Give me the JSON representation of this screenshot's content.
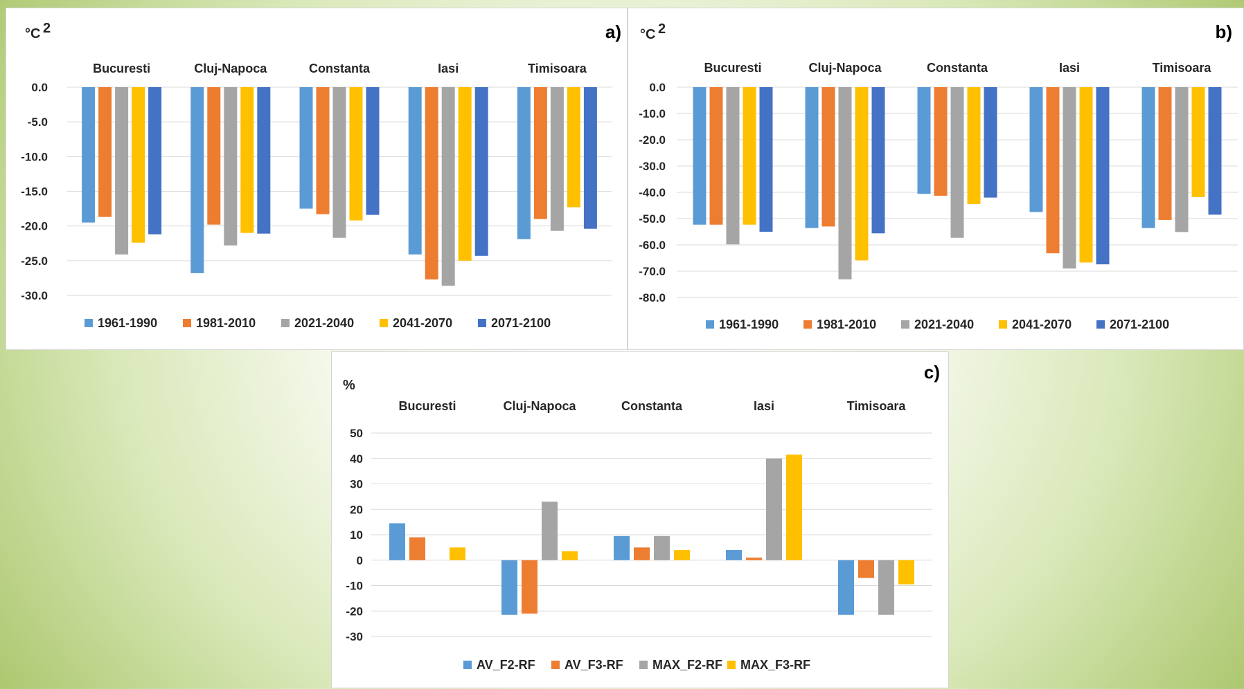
{
  "chart_data": [
    {
      "type": "bar",
      "panel_label": "a)",
      "unit": "°C",
      "unit_sup": "2",
      "categories": [
        "Bucuresti",
        "Cluj-Napoca",
        "Constanta",
        "Iasi",
        "Timisoara"
      ],
      "ylim": [
        -30,
        0
      ],
      "yticks": [
        "0.0",
        "-5.0",
        "-10.0",
        "-15.0",
        "-20.0",
        "-25.0",
        "-30.0"
      ],
      "ytick_values": [
        0,
        -5,
        -10,
        -15,
        -20,
        -25,
        -30
      ],
      "grid": true,
      "legend_position": "bottom",
      "series": [
        {
          "name": "1961-1990",
          "color": "#5b9bd5",
          "values": [
            -19.5,
            -26.8,
            -17.5,
            -24.1,
            -21.9
          ]
        },
        {
          "name": "1981-2010",
          "color": "#ed7d31",
          "values": [
            -18.7,
            -19.8,
            -18.3,
            -27.7,
            -19.0
          ]
        },
        {
          "name": "2021-2040",
          "color": "#a5a5a5",
          "values": [
            -24.1,
            -22.8,
            -21.7,
            -28.6,
            -20.7
          ]
        },
        {
          "name": "2041-2070",
          "color": "#ffc000",
          "values": [
            -22.4,
            -21.0,
            -19.2,
            -25.0,
            -17.3
          ]
        },
        {
          "name": "2071-2100",
          "color": "#4472c4",
          "values": [
            -21.2,
            -21.1,
            -18.4,
            -24.3,
            -20.4
          ]
        }
      ]
    },
    {
      "type": "bar",
      "panel_label": "b)",
      "unit": "°C",
      "unit_sup": "2",
      "categories": [
        "Bucuresti",
        "Cluj-Napoca",
        "Constanta",
        "Iasi",
        "Timisoara"
      ],
      "ylim": [
        -80,
        0
      ],
      "yticks": [
        "0.0",
        "-10.0",
        "-20.0",
        "-30.0",
        "-40.0",
        "-50.0",
        "-60.0",
        "-70.0",
        "-80.0"
      ],
      "ytick_values": [
        0,
        -10,
        -20,
        -30,
        -40,
        -50,
        -60,
        -70,
        -80
      ],
      "grid": true,
      "legend_position": "bottom",
      "series": [
        {
          "name": "1961-1990",
          "color": "#5b9bd5",
          "values": [
            -52.3,
            -53.6,
            -40.6,
            -47.5,
            -53.6
          ]
        },
        {
          "name": "1981-2010",
          "color": "#ed7d31",
          "values": [
            -52.3,
            -53.0,
            -41.3,
            -63.2,
            -50.5
          ]
        },
        {
          "name": "2021-2040",
          "color": "#a5a5a5",
          "values": [
            -59.8,
            -73.1,
            -57.3,
            -69.0,
            -55.1
          ]
        },
        {
          "name": "2041-2070",
          "color": "#ffc000",
          "values": [
            -52.3,
            -65.9,
            -44.5,
            -66.7,
            -41.8
          ]
        },
        {
          "name": "2071-2100",
          "color": "#4472c4",
          "values": [
            -55.0,
            -55.6,
            -42.0,
            -67.4,
            -48.5
          ]
        }
      ]
    },
    {
      "type": "bar",
      "panel_label": "c)",
      "unit": "%",
      "unit_sup": "",
      "categories": [
        "Bucuresti",
        "Cluj-Napoca",
        "Constanta",
        "Iasi",
        "Timisoara"
      ],
      "ylim": [
        -30,
        50
      ],
      "yticks": [
        "50",
        "40",
        "30",
        "20",
        "10",
        "0",
        "-10",
        "-20",
        "-30"
      ],
      "ytick_values": [
        50,
        40,
        30,
        20,
        10,
        0,
        -10,
        -20,
        -30
      ],
      "grid": true,
      "legend_position": "bottom",
      "series": [
        {
          "name": "AV_F2-RF",
          "color": "#5b9bd5",
          "values": [
            14.5,
            -21.5,
            9.5,
            4.0,
            -21.5
          ]
        },
        {
          "name": "AV_F3-RF",
          "color": "#ed7d31",
          "values": [
            9.0,
            -21.0,
            5.0,
            1.0,
            -7.0
          ]
        },
        {
          "name": "MAX_F2-RF",
          "color": "#a5a5a5",
          "values": [
            0.0,
            23.0,
            9.5,
            40.0,
            -21.5
          ]
        },
        {
          "name": "MAX_F3-RF",
          "color": "#ffc000",
          "values": [
            5.0,
            3.5,
            4.0,
            41.5,
            -9.5
          ]
        }
      ]
    }
  ]
}
